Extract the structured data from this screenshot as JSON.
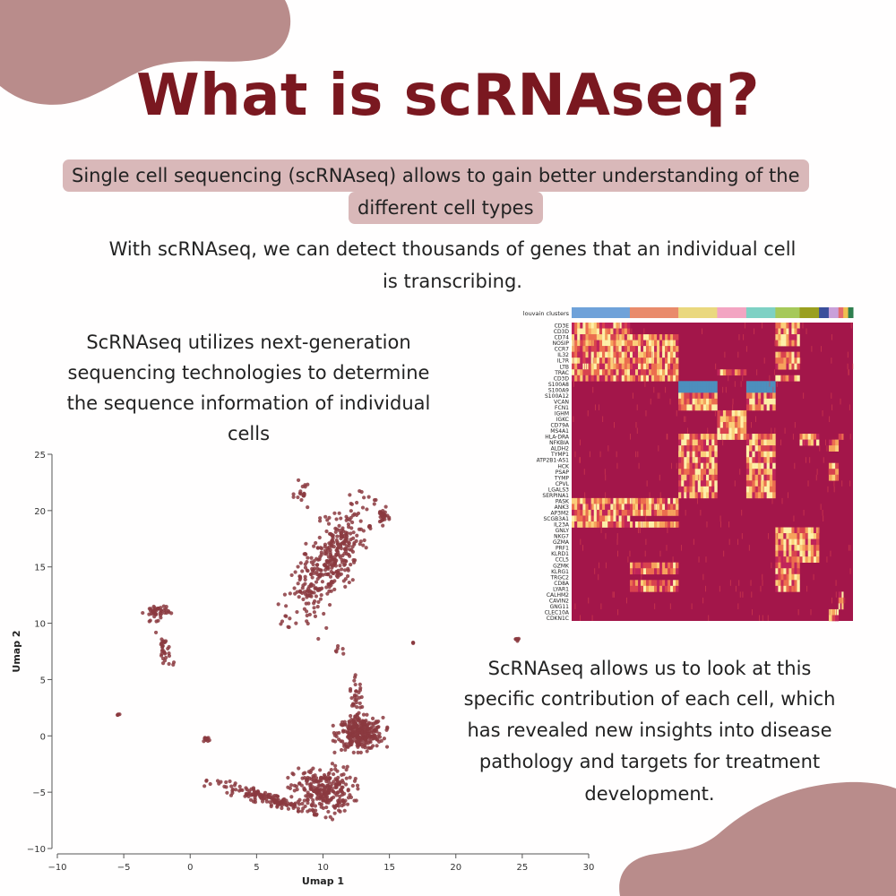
{
  "title": "What is scRNAseq?",
  "highlight": {
    "line1": "Single cell sequencing (scRNAseq) allows to gain better understanding of the",
    "line2": "different cell types"
  },
  "intro": {
    "line1": "With scRNAseq, we can detect thousands of genes that an individual cell",
    "line2": "is transcribing."
  },
  "left_text": {
    "line1": "ScRNAseq utilizes next-generation",
    "line2": "sequencing technologies to determine",
    "line3": "the sequence information of individual",
    "line4": "cells"
  },
  "right_text": {
    "line1": "ScRNAseq allows us to look at this",
    "line2": "specific contribution of each cell, which",
    "line3": "has revealed new insights into disease",
    "line4": "pathology and targets for treatment",
    "line5": "development."
  },
  "colors": {
    "title": "#7a1820",
    "highlight_bg": "#d9b8b9",
    "blob": "#b98c8b",
    "point": "#8b3a3f",
    "heatmap_low": "#a3164a",
    "heatmap_mid": "#f6b167",
    "heatmap_high": "#fdf3b4",
    "heatmap_top": "#4d8fbd"
  },
  "chart_data": [
    {
      "type": "scatter",
      "xlabel": "Umap 1",
      "ylabel": "Umap 2",
      "xlim": [
        -10,
        30
      ],
      "ylim": [
        -10,
        25
      ],
      "xticks": [
        "−10",
        "−5",
        "0",
        "5",
        "10",
        "15",
        "20",
        "25",
        "30"
      ],
      "yticks": [
        "−10",
        "−5",
        "0",
        "5",
        "10",
        "15",
        "20",
        "25"
      ],
      "clusters": [
        {
          "cx": 10.5,
          "cy": 15.5,
          "rx": 1.9,
          "ry": 5.5,
          "angle": 25,
          "n": 380
        },
        {
          "cx": 12.8,
          "cy": 0.2,
          "rx": 1.7,
          "ry": 1.4,
          "angle": 0,
          "n": 300
        },
        {
          "cx": 10.0,
          "cy": -4.8,
          "rx": 2.2,
          "ry": 2.0,
          "angle": 0,
          "n": 260
        },
        {
          "cx": 6.0,
          "cy": -5.6,
          "rx": 4.2,
          "ry": 0.5,
          "angle": 18,
          "n": 150
        },
        {
          "cx": 12.5,
          "cy": 3.0,
          "rx": 0.5,
          "ry": 2.0,
          "angle": 0,
          "n": 40
        },
        {
          "cx": -2.5,
          "cy": 11.0,
          "rx": 0.9,
          "ry": 0.7,
          "angle": 0,
          "n": 45
        },
        {
          "cx": -1.9,
          "cy": 7.5,
          "rx": 0.4,
          "ry": 1.6,
          "angle": -15,
          "n": 30
        },
        {
          "cx": 14.5,
          "cy": 19.5,
          "rx": 0.4,
          "ry": 0.7,
          "angle": 0,
          "n": 25
        },
        {
          "cx": 1.2,
          "cy": -0.3,
          "rx": 0.3,
          "ry": 0.25,
          "angle": 0,
          "n": 10
        },
        {
          "cx": -5.4,
          "cy": 1.9,
          "rx": 0.15,
          "ry": 0.1,
          "angle": 0,
          "n": 5
        },
        {
          "cx": 24.6,
          "cy": 8.6,
          "rx": 0.2,
          "ry": 0.15,
          "angle": 0,
          "n": 6
        },
        {
          "cx": 16.8,
          "cy": 8.3,
          "rx": 0.1,
          "ry": 0.1,
          "angle": 0,
          "n": 3
        },
        {
          "cx": 11.2,
          "cy": 7.5,
          "rx": 0.4,
          "ry": 0.4,
          "angle": 0,
          "n": 6
        },
        {
          "cx": 8.5,
          "cy": 21.5,
          "rx": 0.6,
          "ry": 1.0,
          "angle": 0,
          "n": 18
        }
      ]
    },
    {
      "type": "heatmap",
      "header_label": "louvain clusters",
      "cluster_colors": [
        "#6fa2d9",
        "#e98b6b",
        "#ead87e",
        "#f3a5c2",
        "#7ed1c4",
        "#a6c95a",
        "#9a9f1f",
        "#3b4f9c",
        "#c9a0d9",
        "#e56b6b",
        "#f0c050",
        "#2f7f4f"
      ],
      "cluster_widths": [
        12,
        10,
        8,
        6,
        6,
        5,
        4,
        2,
        2,
        1,
        1,
        1
      ],
      "genes": [
        "CD3E",
        "CD3D",
        "CD74",
        "NOSIP",
        "CCR7",
        "IL32",
        "IL7R",
        "LTB",
        "TRAC",
        "CD3D",
        "S100A8",
        "S100A9",
        "S100A12",
        "VCAN",
        "FCN1",
        "IGHM",
        "IGKC",
        "CD79A",
        "MS4A1",
        "HLA-DRA",
        "NFKBIA",
        "ALDH2",
        "TYMP1",
        "ATP2B1-AS1",
        "HCK",
        "PSAP",
        "TYMP",
        "CPVL",
        "LGALS3",
        "SERPINA1",
        "PASK",
        "ANK3",
        "AP3M2",
        "SCGB3A1",
        "IL23A",
        "GNLY",
        "NKG7",
        "GZMA",
        "PRF1",
        "KLRD1",
        "CCL5",
        "GZMK",
        "KLRG1",
        "TRGC2",
        "CD8A",
        "LYAR1",
        "CALHM2",
        "CAVIN2",
        "GNG11",
        "CLEC10A",
        "CDKN1C"
      ]
    }
  ]
}
